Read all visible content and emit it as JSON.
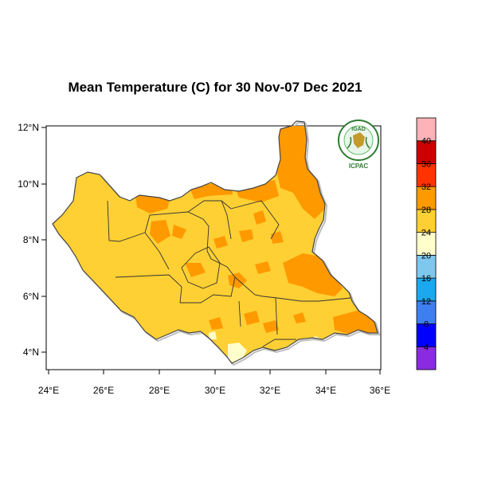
{
  "title": "Mean Temperature (C) for 30 Nov-07 Dec 2021",
  "map": {
    "lon_range": [
      24,
      36
    ],
    "lat_range": [
      3.5,
      12.5
    ],
    "x_ticks": [
      "24°E",
      "26°E",
      "28°E",
      "30°E",
      "32°E",
      "34°E",
      "36°E"
    ],
    "y_ticks": [
      "4°N",
      "6°N",
      "8°N",
      "10°N",
      "12°N"
    ],
    "base_fill": "#ffd033",
    "warm_fill": "#ff9900",
    "cool_fill": "#ffffcc"
  },
  "colorbar": {
    "labels": [
      "4",
      "8",
      "12",
      "16",
      "20",
      "24",
      "28",
      "32",
      "36",
      "40"
    ],
    "colors": [
      "#8a2be2",
      "#0000ff",
      "#3d7ff0",
      "#1aa8f0",
      "#7ec8ee",
      "#ffffcc",
      "#ffd033",
      "#ff9900",
      "#ff3300",
      "#cc0000",
      "#ffb3b8"
    ]
  },
  "logo": {
    "top_text": "IGAD",
    "bottom_text": "ICPAC"
  }
}
